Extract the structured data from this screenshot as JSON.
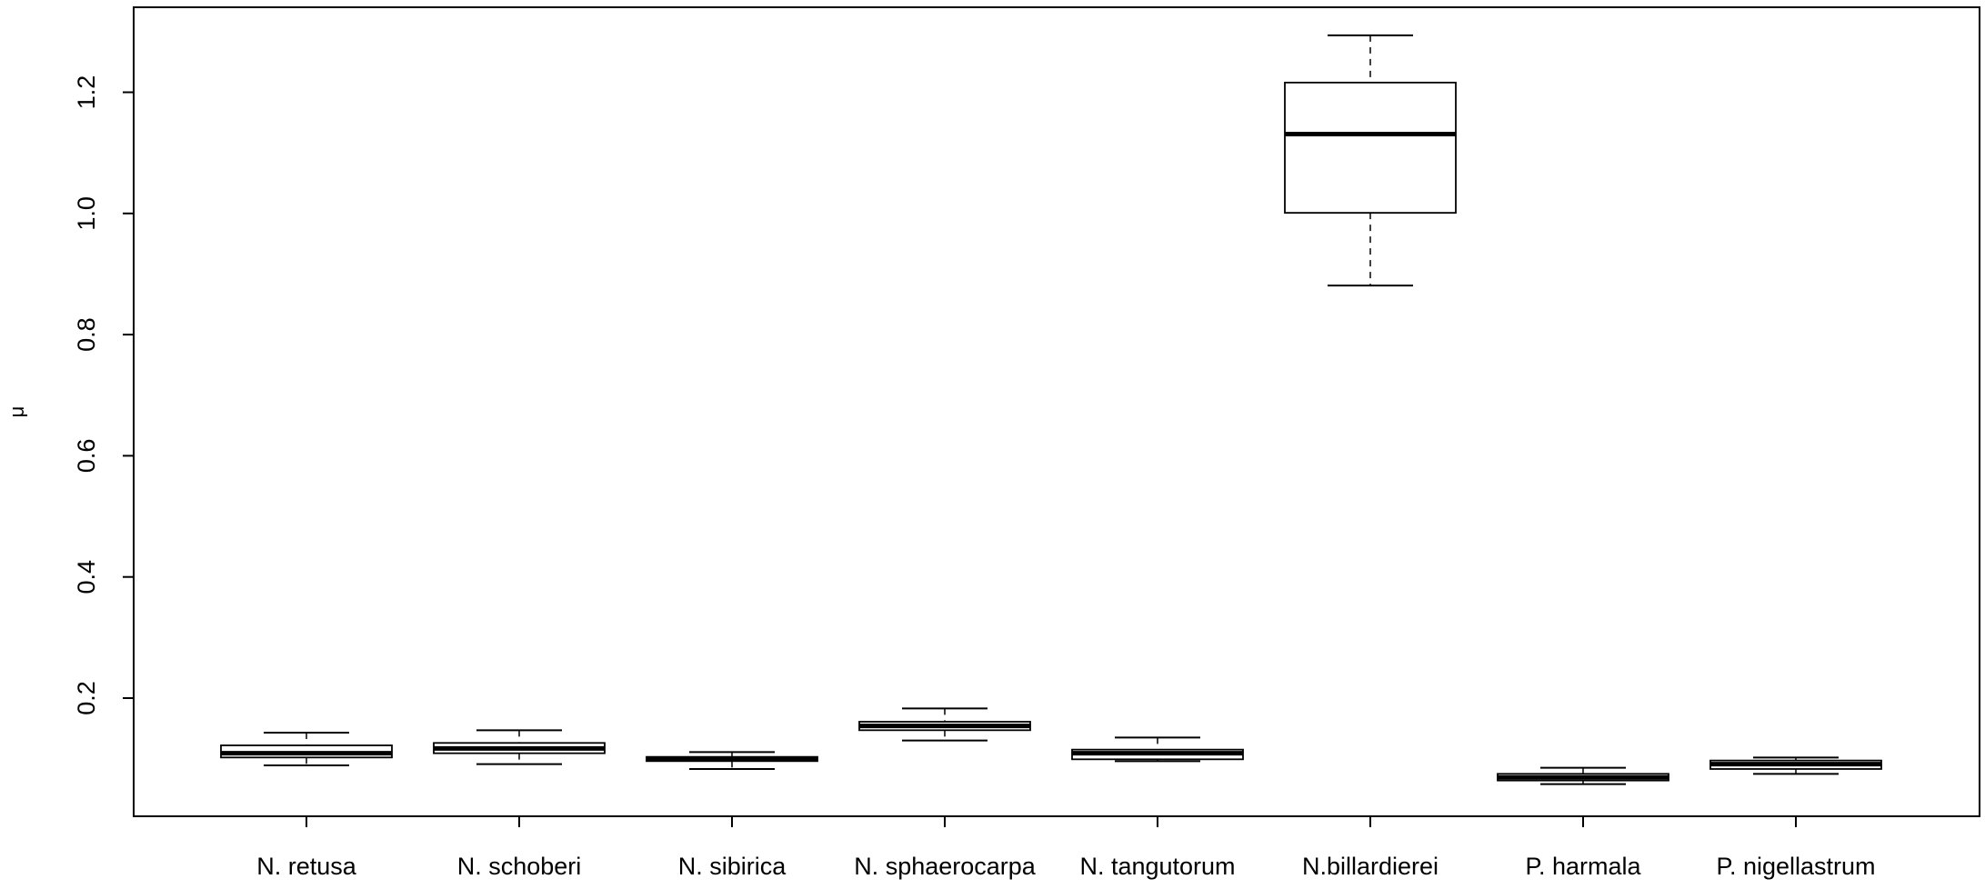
{
  "chart_data": {
    "type": "boxplot",
    "title": "",
    "xlabel": "",
    "ylabel": "μ",
    "ylim": [
      0.02,
      1.33
    ],
    "yticks": [
      0.2,
      0.4,
      0.6,
      0.8,
      1.0,
      1.2
    ],
    "ytick_labels": [
      "0.2",
      "0.4",
      "0.6",
      "0.8",
      "1.0",
      "1.2"
    ],
    "grid": false,
    "legend": "none",
    "categories": [
      "N. retusa",
      "N. schoberi",
      "N. sibirica",
      "N. sphaerocarpa",
      "N. tangutorum",
      "N.billardierei",
      "P. harmala",
      "P. nigellastrum"
    ],
    "boxes": [
      {
        "min": 0.089,
        "q1": 0.102,
        "median": 0.109,
        "q3": 0.122,
        "max": 0.143
      },
      {
        "min": 0.091,
        "q1": 0.109,
        "median": 0.117,
        "q3": 0.126,
        "max": 0.147
      },
      {
        "min": 0.083,
        "q1": 0.096,
        "median": 0.1,
        "q3": 0.103,
        "max": 0.111
      },
      {
        "min": 0.13,
        "q1": 0.147,
        "median": 0.154,
        "q3": 0.161,
        "max": 0.183
      },
      {
        "min": 0.096,
        "q1": 0.099,
        "median": 0.109,
        "q3": 0.115,
        "max": 0.135
      },
      {
        "min": 0.881,
        "q1": 1.001,
        "median": 1.131,
        "q3": 1.216,
        "max": 1.294
      },
      {
        "min": 0.058,
        "q1": 0.064,
        "median": 0.069,
        "q3": 0.075,
        "max": 0.085
      },
      {
        "min": 0.075,
        "q1": 0.083,
        "median": 0.091,
        "q3": 0.097,
        "max": 0.102
      }
    ],
    "colors": {
      "box_fill": "#ffffff",
      "stroke": "#000000"
    }
  }
}
